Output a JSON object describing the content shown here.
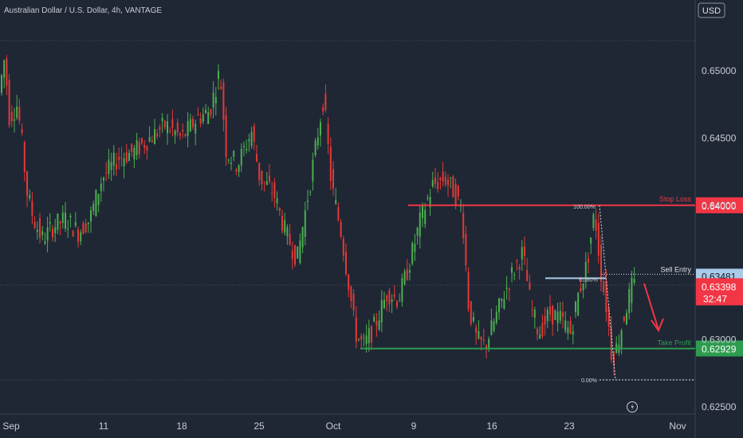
{
  "chart_data": {
    "type": "candlestick",
    "title": "Australian Dollar / U.S. Dollar, 4h, VANTAGE",
    "currency": "USD",
    "ylim": [
      0.625,
      0.6522
    ],
    "y_ticks": [
      "0.65000",
      "0.64500",
      "0.64000",
      "0.63000",
      "0.62500"
    ],
    "x_ticks": [
      "Sep",
      "11",
      "18",
      "25",
      "Oct",
      "9",
      "16",
      "23",
      "Nov"
    ],
    "price_path": [
      [
        0,
        0.648
      ],
      [
        8,
        0.651
      ],
      [
        14,
        0.6465
      ],
      [
        24,
        0.6475
      ],
      [
        30,
        0.6445
      ],
      [
        36,
        0.641
      ],
      [
        44,
        0.639
      ],
      [
        55,
        0.6375
      ],
      [
        70,
        0.6385
      ],
      [
        85,
        0.639
      ],
      [
        100,
        0.638
      ],
      [
        115,
        0.639
      ],
      [
        130,
        0.642
      ],
      [
        150,
        0.6435
      ],
      [
        170,
        0.644
      ],
      [
        190,
        0.645
      ],
      [
        210,
        0.646
      ],
      [
        230,
        0.645
      ],
      [
        250,
        0.6465
      ],
      [
        265,
        0.647
      ],
      [
        278,
        0.65
      ],
      [
        286,
        0.644
      ],
      [
        300,
        0.643
      ],
      [
        318,
        0.6455
      ],
      [
        328,
        0.642
      ],
      [
        345,
        0.641
      ],
      [
        360,
        0.638
      ],
      [
        375,
        0.636
      ],
      [
        392,
        0.642
      ],
      [
        408,
        0.648
      ],
      [
        418,
        0.6415
      ],
      [
        430,
        0.638
      ],
      [
        440,
        0.634
      ],
      [
        448,
        0.6305
      ],
      [
        458,
        0.6295
      ],
      [
        472,
        0.631
      ],
      [
        488,
        0.6335
      ],
      [
        502,
        0.633
      ],
      [
        515,
        0.6355
      ],
      [
        530,
        0.639
      ],
      [
        545,
        0.6415
      ],
      [
        560,
        0.642
      ],
      [
        572,
        0.641
      ],
      [
        582,
        0.6395
      ],
      [
        590,
        0.6325
      ],
      [
        600,
        0.63
      ],
      [
        610,
        0.6295
      ],
      [
        620,
        0.631
      ],
      [
        632,
        0.633
      ],
      [
        645,
        0.635
      ],
      [
        658,
        0.6365
      ],
      [
        668,
        0.6325
      ],
      [
        678,
        0.6305
      ],
      [
        692,
        0.632
      ],
      [
        706,
        0.6315
      ],
      [
        718,
        0.6305
      ],
      [
        728,
        0.6335
      ],
      [
        738,
        0.6355
      ],
      [
        748,
        0.6395
      ],
      [
        756,
        0.635
      ],
      [
        764,
        0.632
      ],
      [
        770,
        0.6285
      ],
      [
        776,
        0.6295
      ],
      [
        786,
        0.632
      ],
      [
        795,
        0.634
      ]
    ],
    "levels": [
      {
        "name": "Stop Loss",
        "value": 0.64,
        "label": "0.64000",
        "color": "#f23645"
      },
      {
        "name": "Sell Entry",
        "value": 0.63481,
        "label": "0.63481",
        "color": "#a9cbe8"
      },
      {
        "name": "Take Profit",
        "value": 0.62929,
        "label": "0.62929",
        "color": "#2e9c4f"
      }
    ],
    "current_price": {
      "value": 0.63398,
      "label": "0.63398",
      "countdown": "32:47",
      "color": "#f23645"
    },
    "fib_labels": [
      "100.00%",
      "61.80%",
      "0.00%"
    ],
    "colors": {
      "up": "#4caf50",
      "down": "#e53935",
      "background": "#1f2735",
      "axis_text": "#c8ccd4"
    }
  }
}
